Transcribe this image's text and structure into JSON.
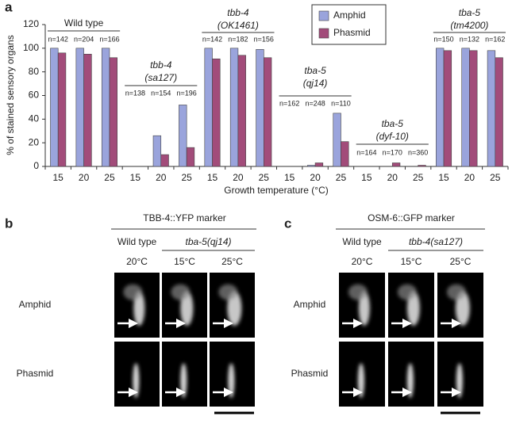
{
  "chart_data": {
    "type": "bar",
    "panel": "a",
    "ylabel": "% of stained sensory organs",
    "xlabel": "Growth temperature (°C)",
    "categories": [
      15,
      20,
      25,
      15,
      20,
      25,
      15,
      20,
      25,
      15,
      20,
      25,
      15,
      20,
      25,
      15,
      20,
      25
    ],
    "ylim": [
      0,
      120
    ],
    "yticks": [
      0,
      20,
      40,
      60,
      80,
      100,
      120
    ],
    "legend": "top",
    "series": [
      {
        "name": "Amphid",
        "color": "#9aa4dc",
        "values": [
          100,
          100,
          100,
          0,
          26,
          52,
          100,
          100,
          99,
          0,
          1,
          45,
          0,
          0,
          0,
          100,
          100,
          98
        ]
      },
      {
        "name": "Phasmid",
        "color": "#a24c7a",
        "values": [
          96,
          95,
          92,
          0,
          10,
          16,
          91,
          94,
          92,
          0,
          3,
          21,
          0,
          3,
          1,
          98,
          98,
          92
        ]
      }
    ],
    "groups": [
      {
        "label": [
          "Wild type"
        ],
        "n": [
          "n=142",
          "n=204",
          "n=166"
        ]
      },
      {
        "label": [
          "tbb-4",
          "(sa127)"
        ],
        "n": [
          "n=138",
          "n=154",
          "n=196"
        ]
      },
      {
        "label": [
          "tbb-4",
          "(OK1461)"
        ],
        "n": [
          "n=142",
          "n=182",
          "n=156"
        ]
      },
      {
        "label": [
          "tba-5",
          "(qj14)"
        ],
        "n": [
          "n=162",
          "n=248",
          "n=110"
        ]
      },
      {
        "label": [
          "tba-5",
          "(dyf-10)"
        ],
        "n": [
          "n=164",
          "n=170",
          "n=360"
        ]
      },
      {
        "label": [
          "tba-5",
          "(tm4200)"
        ],
        "n": [
          "n=150",
          "n=132",
          "n=162"
        ]
      }
    ]
  },
  "panels": [
    {
      "letter": "b",
      "title": "TBB-4::YFP marker",
      "columns": [
        "Wild type",
        "tba-5(qj14)"
      ],
      "temperatures": [
        "20°C",
        "15°C",
        "25°C"
      ],
      "rows": [
        "Amphid",
        "Phasmid"
      ]
    },
    {
      "letter": "c",
      "title": "OSM-6::GFP marker",
      "columns": [
        "Wild type",
        "tbb-4(sa127)"
      ],
      "temperatures": [
        "20°C",
        "15°C",
        "25°C"
      ],
      "rows": [
        "Amphid",
        "Phasmid"
      ]
    }
  ]
}
